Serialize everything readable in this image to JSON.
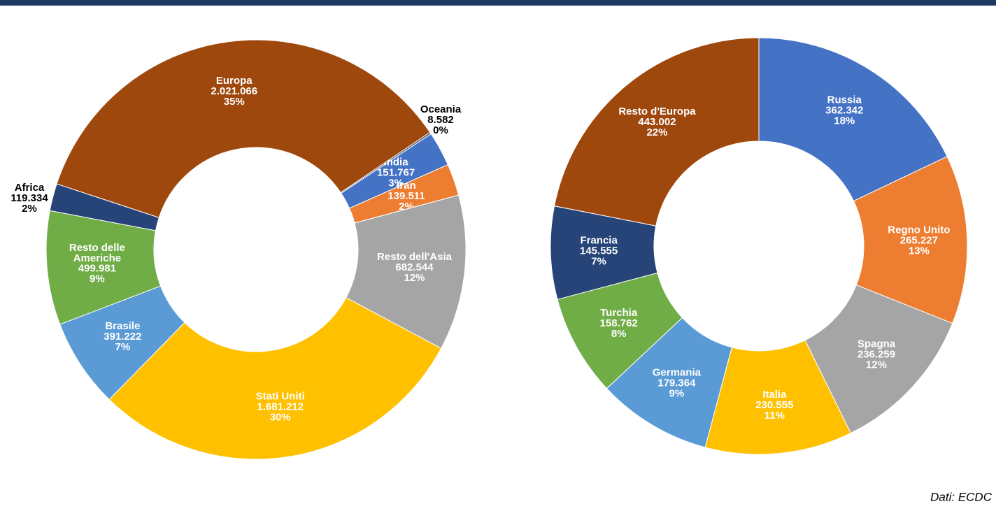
{
  "chart_data": [
    {
      "type": "donut",
      "categories": [
        "Oceania",
        "India",
        "Iran",
        "Resto dell'Asia",
        "Stati Uniti",
        "Brasile",
        "Resto delle Americhe",
        "Africa",
        "Europa"
      ],
      "values": [
        8582,
        151767,
        139511,
        682544,
        1681212,
        391222,
        499981,
        119334,
        2021066
      ],
      "value_labels": [
        "8.582",
        "151.767",
        "139.511",
        "682.544",
        "1.681.212",
        "391.222",
        "499.981",
        "119.334",
        "2.021.066"
      ],
      "percent_labels": [
        "0%",
        "3%",
        "2%",
        "12%",
        "30%",
        "7%",
        "9%",
        "2%",
        "35%"
      ],
      "colors": [
        "#44546a",
        "#4472c4",
        "#ed7d31",
        "#a5a5a5",
        "#ffc000",
        "#5b9bd5",
        "#70ad47",
        "#264478",
        "#9e480e"
      ]
    },
    {
      "type": "donut",
      "categories": [
        "Russia",
        "Regno Unito",
        "Spagna",
        "Italia",
        "Germania",
        "Turchia",
        "Francia",
        "Resto d'Europa"
      ],
      "values": [
        362342,
        265227,
        236259,
        230555,
        179364,
        158762,
        145555,
        443002
      ],
      "value_labels": [
        "362.342",
        "265.227",
        "236.259",
        "230.555",
        "179.364",
        "158.762",
        "145.555",
        "443.002"
      ],
      "percent_labels": [
        "18%",
        "13%",
        "12%",
        "11%",
        "9%",
        "8%",
        "7%",
        "22%"
      ],
      "colors": [
        "#4472c4",
        "#ed7d31",
        "#a5a5a5",
        "#ffc000",
        "#5b9bd5",
        "#70ad47",
        "#264478",
        "#9e480e"
      ]
    }
  ],
  "source": "Dati: ECDC"
}
